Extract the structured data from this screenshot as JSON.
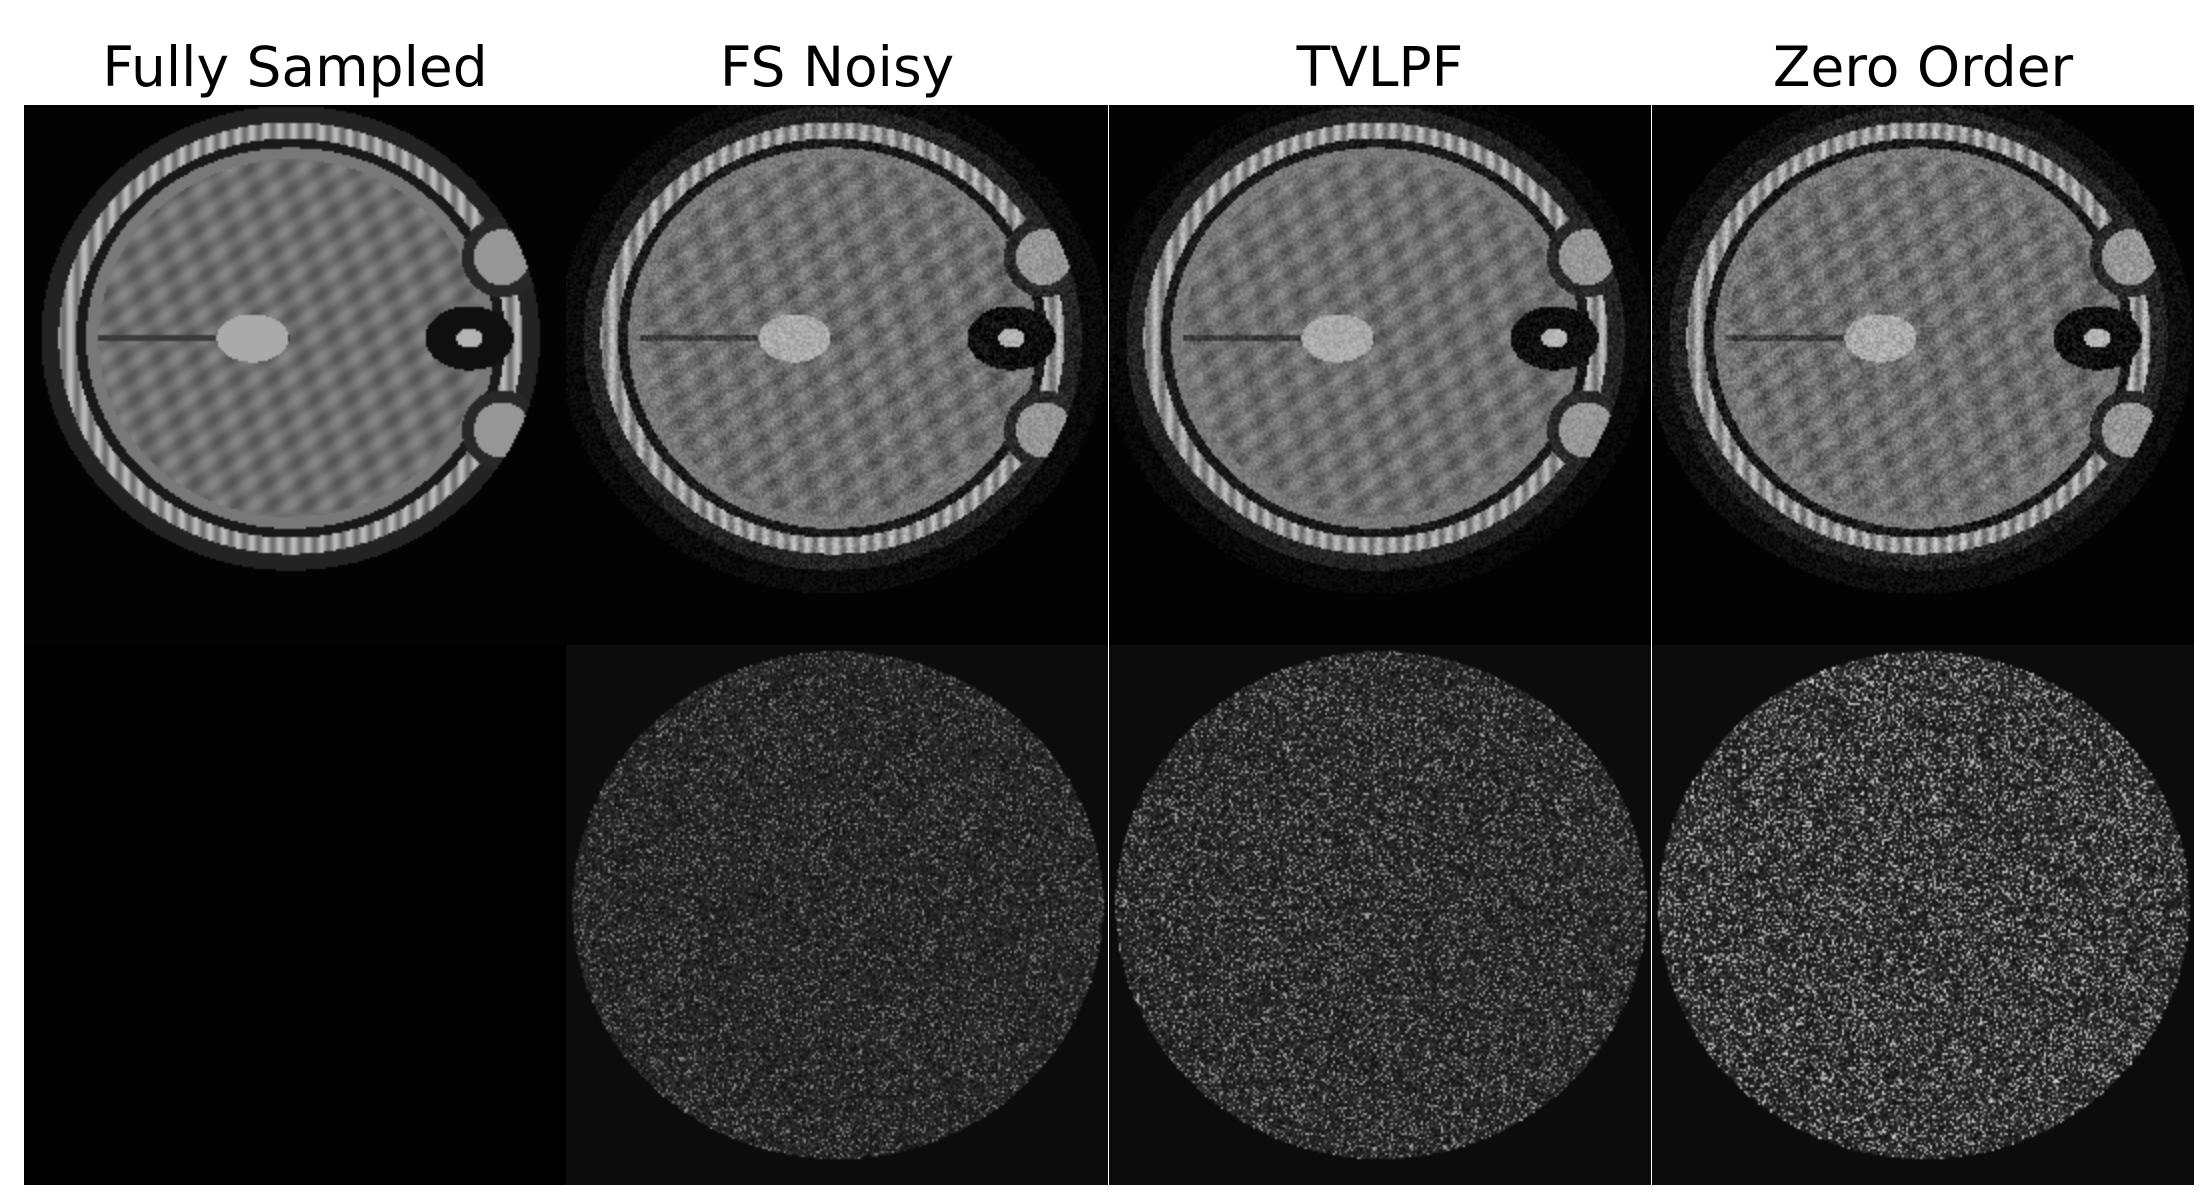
{
  "figure": {
    "columns": [
      {
        "title": "Fully Sampled",
        "top": "brain",
        "bottom": "empty",
        "noise": 0.0,
        "err": 0.0
      },
      {
        "title": "FS Noisy",
        "top": "brain",
        "bottom": "error",
        "noise": 0.35,
        "err": 0.45
      },
      {
        "title": "TVLPF",
        "top": "brain",
        "bottom": "error",
        "noise": 0.3,
        "err": 0.6
      },
      {
        "title": "Zero Order",
        "top": "brain",
        "bottom": "error",
        "noise": 0.45,
        "err": 0.8
      }
    ]
  }
}
